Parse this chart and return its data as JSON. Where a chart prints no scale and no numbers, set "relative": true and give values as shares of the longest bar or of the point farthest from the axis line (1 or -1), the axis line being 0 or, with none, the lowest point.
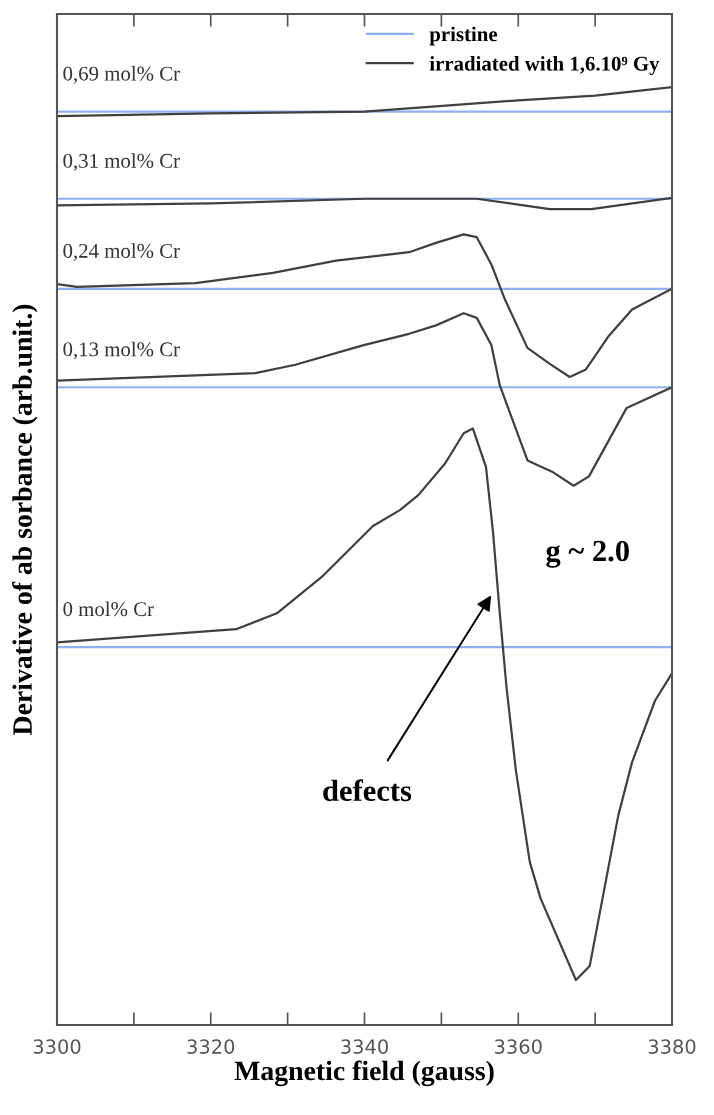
{
  "chart_data": {
    "type": "line",
    "relative": true,
    "xlabel": "Magnetic field (gauss)",
    "ylabel": "Derivative of ab sorbance (arb.unit.)",
    "xlim": [
      3300,
      3380
    ],
    "xticks": [
      3300,
      {
        "value": 3310,
        "label": null
      },
      3320,
      {
        "value": 3330,
        "label": null
      },
      3340,
      {
        "value": 3350,
        "label": null
      },
      3360,
      {
        "value": 3370,
        "label": null
      },
      3380
    ],
    "tick_labels": "x",
    "legend": "top right",
    "grid": false,
    "series": [
      {
        "name": "pristine",
        "color": "#8fb0f0",
        "x": [
          3300,
          3380
        ],
        "values": [
          0.974,
          0.974
        ]
      },
      {
        "color": "#8fb0f0",
        "x": [
          3300,
          3380
        ],
        "values": [
          0.881,
          0.881
        ]
      },
      {
        "color": "#8fb0f0",
        "x": [
          3300,
          3380
        ],
        "values": [
          0.785,
          0.785
        ]
      },
      {
        "color": "#8fb0f0",
        "x": [
          3300,
          3380
        ],
        "values": [
          0.68,
          0.68
        ]
      },
      {
        "color": "#8fb0f0",
        "x": [
          3300,
          3380
        ],
        "values": [
          0.403,
          0.403
        ]
      },
      {
        "name": "irradiated with 1,6.10⁹ Gy",
        "color": "#404040",
        "x": [
          3300,
          3320,
          3340,
          3360,
          3370,
          3380
        ],
        "values": [
          0.969,
          0.972,
          0.974,
          0.986,
          0.991,
          1.0
        ]
      },
      {
        "color": "#404040",
        "x": [
          3300,
          3320,
          3340,
          3354.6,
          3364.1,
          3369.5,
          3380
        ],
        "values": [
          0.874,
          0.876,
          0.881,
          0.881,
          0.87,
          0.87,
          0.882
        ]
      },
      {
        "color": "#404040",
        "x": [
          3300,
          3302.6,
          3318,
          3328.1,
          3336.3,
          3345.8,
          3349.3,
          3352.9,
          3354.6,
          3356.5,
          3358.3,
          3361.2,
          3364.1,
          3366.7,
          3368.8,
          3371.8,
          3374.8,
          3380
        ],
        "values": [
          0.79,
          0.787,
          0.791,
          0.802,
          0.815,
          0.824,
          0.834,
          0.843,
          0.84,
          0.811,
          0.773,
          0.722,
          0.705,
          0.691,
          0.699,
          0.735,
          0.763,
          0.785
        ]
      },
      {
        "color": "#404040",
        "x": [
          3300,
          3325.8,
          3331,
          3339.9,
          3345.8,
          3349.3,
          3352.9,
          3354.6,
          3356.5,
          3357.6,
          3361.2,
          3364.4,
          3367.2,
          3369.2,
          3374.1,
          3380
        ],
        "values": [
          0.687,
          0.695,
          0.704,
          0.725,
          0.737,
          0.746,
          0.759,
          0.754,
          0.725,
          0.682,
          0.602,
          0.59,
          0.575,
          0.585,
          0.658,
          0.68
        ]
      },
      {
        "color": "#404040",
        "x": [
          3300,
          3323.3,
          3328.6,
          3334.6,
          3341.1,
          3344.6,
          3347,
          3350.5,
          3352.9,
          3354.1,
          3355.8,
          3356.7,
          3357.6,
          3358.5,
          3359.7,
          3361.5,
          3362.9,
          3367.5,
          3369.3,
          3373,
          3374.8,
          3377.8,
          3380
        ],
        "values": [
          0.408,
          0.422,
          0.439,
          0.479,
          0.532,
          0.549,
          0.565,
          0.599,
          0.631,
          0.636,
          0.595,
          0.527,
          0.439,
          0.358,
          0.271,
          0.174,
          0.135,
          0.048,
          0.063,
          0.223,
          0.28,
          0.346,
          0.375
        ]
      }
    ],
    "annotations": [
      "0,69 mol% Cr",
      "0,31 mol% Cr",
      "0,24 mol% Cr",
      "0,13 mol% Cr",
      "0 mol% Cr",
      "g ~ 2.0",
      "defects"
    ]
  }
}
